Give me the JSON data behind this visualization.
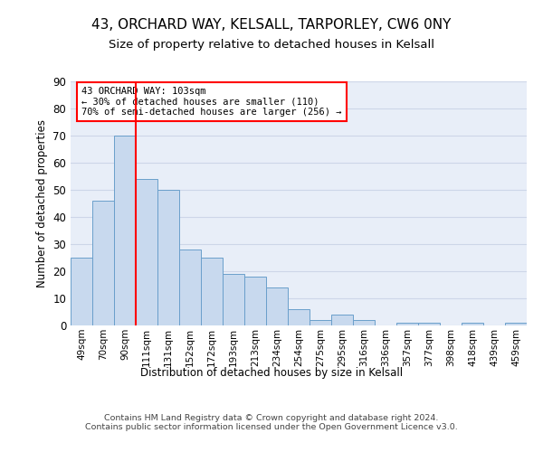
{
  "title1": "43, ORCHARD WAY, KELSALL, TARPORLEY, CW6 0NY",
  "title2": "Size of property relative to detached houses in Kelsall",
  "xlabel": "Distribution of detached houses by size in Kelsall",
  "ylabel": "Number of detached properties",
  "bar_labels": [
    "49sqm",
    "70sqm",
    "90sqm",
    "111sqm",
    "131sqm",
    "152sqm",
    "172sqm",
    "193sqm",
    "213sqm",
    "234sqm",
    "254sqm",
    "275sqm",
    "295sqm",
    "316sqm",
    "336sqm",
    "357sqm",
    "377sqm",
    "398sqm",
    "418sqm",
    "439sqm",
    "459sqm"
  ],
  "bar_values": [
    25,
    46,
    70,
    54,
    50,
    28,
    25,
    19,
    18,
    14,
    6,
    2,
    4,
    2,
    0,
    1,
    1,
    0,
    1,
    0,
    1
  ],
  "bar_color": "#c8d9ee",
  "bar_edge_color": "#6a9fcb",
  "vline_x": 2.5,
  "vline_color": "red",
  "annotation_text": "43 ORCHARD WAY: 103sqm\n← 30% of detached houses are smaller (110)\n70% of semi-detached houses are larger (256) →",
  "annotation_box_color": "white",
  "annotation_box_edge_color": "red",
  "ylim": [
    0,
    90
  ],
  "yticks": [
    0,
    10,
    20,
    30,
    40,
    50,
    60,
    70,
    80,
    90
  ],
  "grid_color": "#cdd6e8",
  "background_color": "#e8eef8",
  "footer": "Contains HM Land Registry data © Crown copyright and database right 2024.\nContains public sector information licensed under the Open Government Licence v3.0.",
  "title1_fontsize": 11,
  "title2_fontsize": 9.5
}
